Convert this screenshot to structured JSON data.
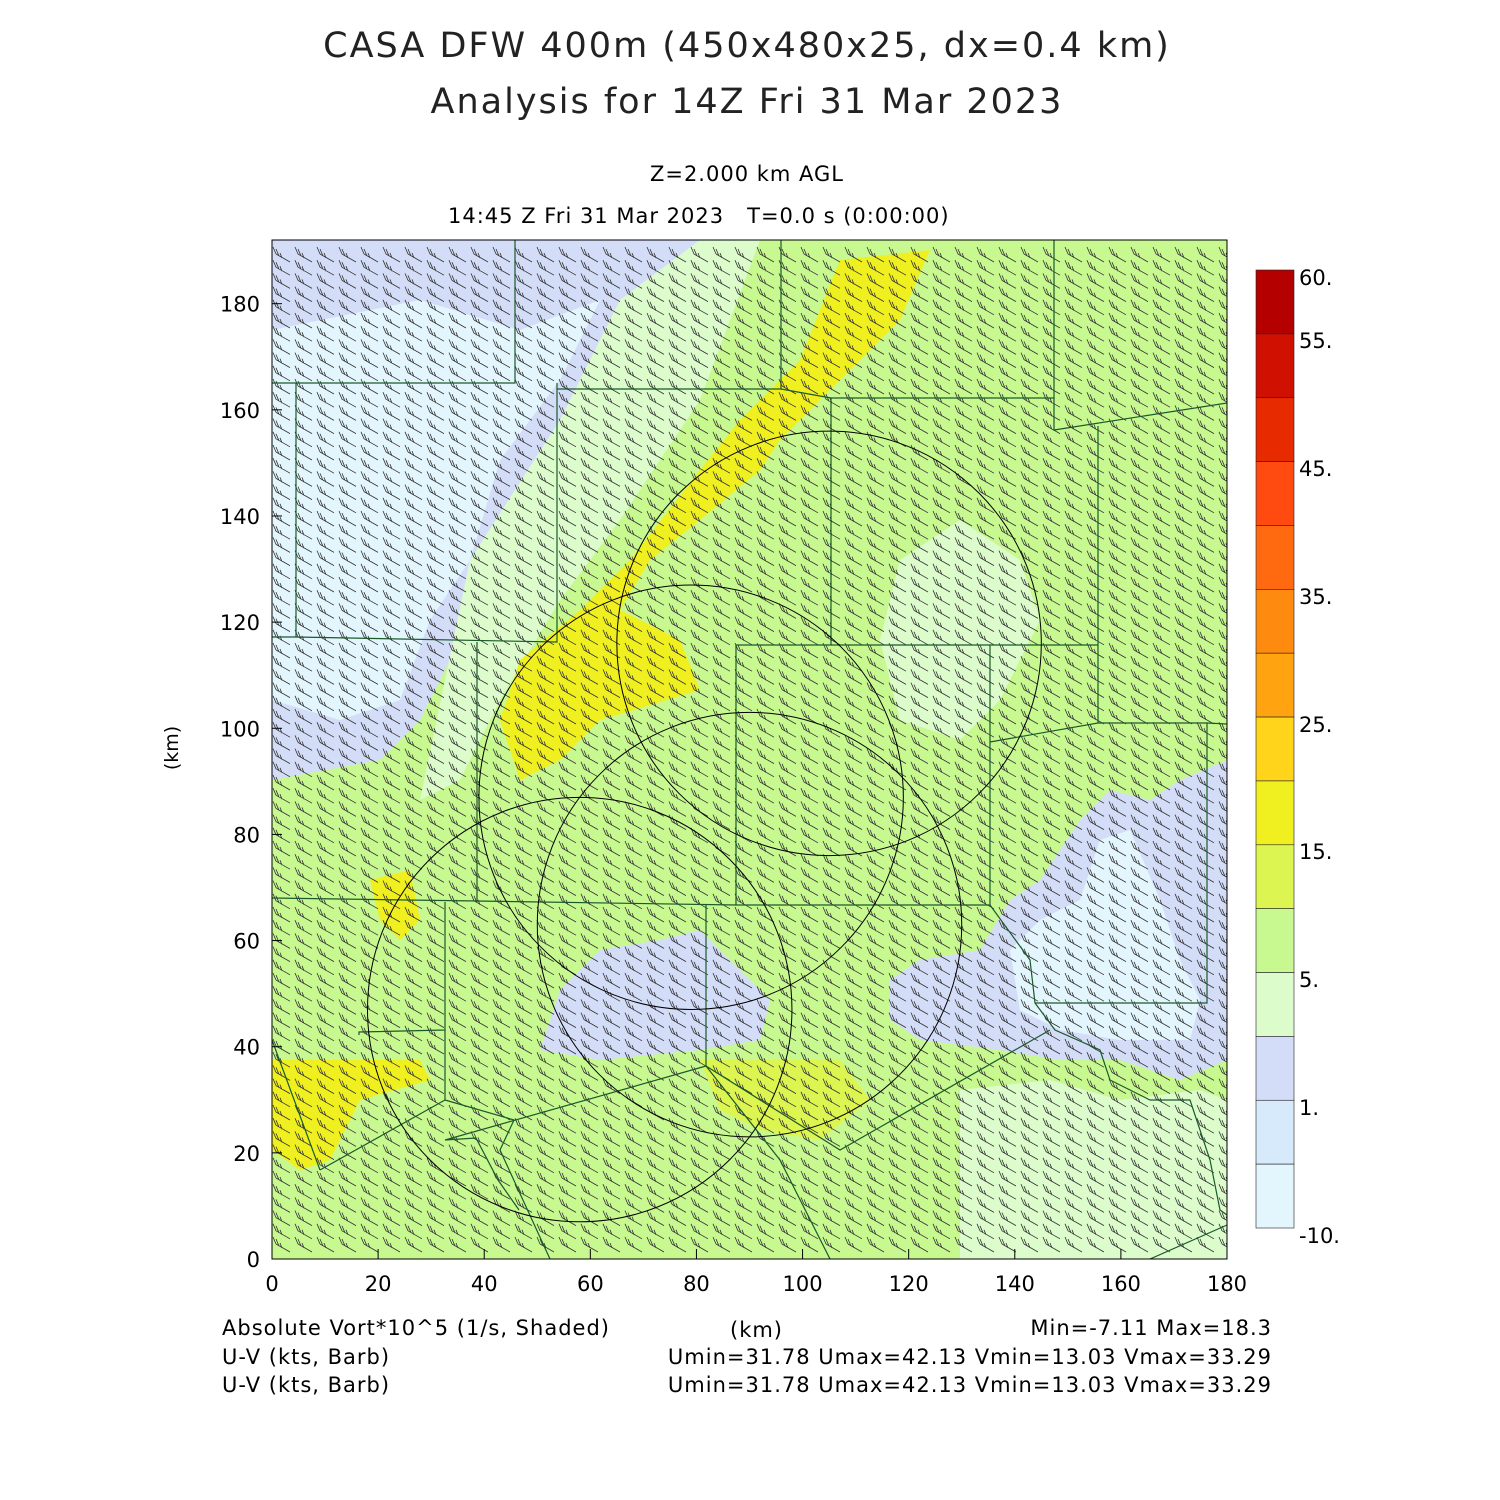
{
  "title": {
    "line1": "CASA DFW 400m (450x480x25, dx=0.4 km)",
    "line2": "Analysis for 14Z Fri 31 Mar 2023"
  },
  "subtitle": {
    "level": "Z=2.000 km AGL",
    "time": "14:45 Z Fri 31 Mar 2023   T=0.0 s (0:00:00)"
  },
  "footer": {
    "field1_label": "Absolute Vort*10^5 (1/s, Shaded)",
    "field1_unit": "(km)",
    "field1_stats": "Min=-7.11 Max=18.3",
    "field2_label": "U-V (kts, Barb)",
    "field2_stats": "Umin=31.78 Umax=42.13 Vmin=13.03 Vmax=33.29",
    "field3_label": "U-V (kts, Barb)",
    "field3_stats": "Umin=31.78 Umax=42.13 Vmin=13.03 Vmax=33.29"
  },
  "chart_data": {
    "type": "heatmap",
    "xlabel": "(km)",
    "ylabel": "(km)",
    "xlim": [
      0,
      180
    ],
    "ylim": [
      0,
      192
    ],
    "xticks": [
      0,
      20,
      40,
      60,
      80,
      100,
      120,
      140,
      160,
      180
    ],
    "yticks": [
      0,
      20,
      40,
      60,
      80,
      100,
      120,
      140,
      160,
      180
    ],
    "colorbar": {
      "labels": [
        "60.",
        "55.",
        "45.",
        "35.",
        "25.",
        "15.",
        "5.",
        "1.",
        "-10."
      ],
      "colors": [
        "#b50000",
        "#d01000",
        "#e82a00",
        "#ff4a10",
        "#ff6a10",
        "#ff8a10",
        "#ffa410",
        "#ffd41a",
        "#f0f020",
        "#ddf550",
        "#c8f890",
        "#dcfccc",
        "#d4ddf8",
        "#d6eafc",
        "#e4f6fd"
      ]
    },
    "field_min": -7.11,
    "field_max": 18.3,
    "radar_rings": [
      {
        "cx": 105,
        "cy": 116,
        "r": 40
      },
      {
        "cx": 79,
        "cy": 87,
        "r": 40
      },
      {
        "cx": 90,
        "cy": 63,
        "r": 40
      },
      {
        "cx": 58,
        "cy": 47,
        "r": 40
      }
    ],
    "wind_barbs": {
      "u_min": 31.78,
      "u_max": 42.13,
      "v_min": 13.03,
      "v_max": 33.29,
      "units": "kts"
    }
  }
}
